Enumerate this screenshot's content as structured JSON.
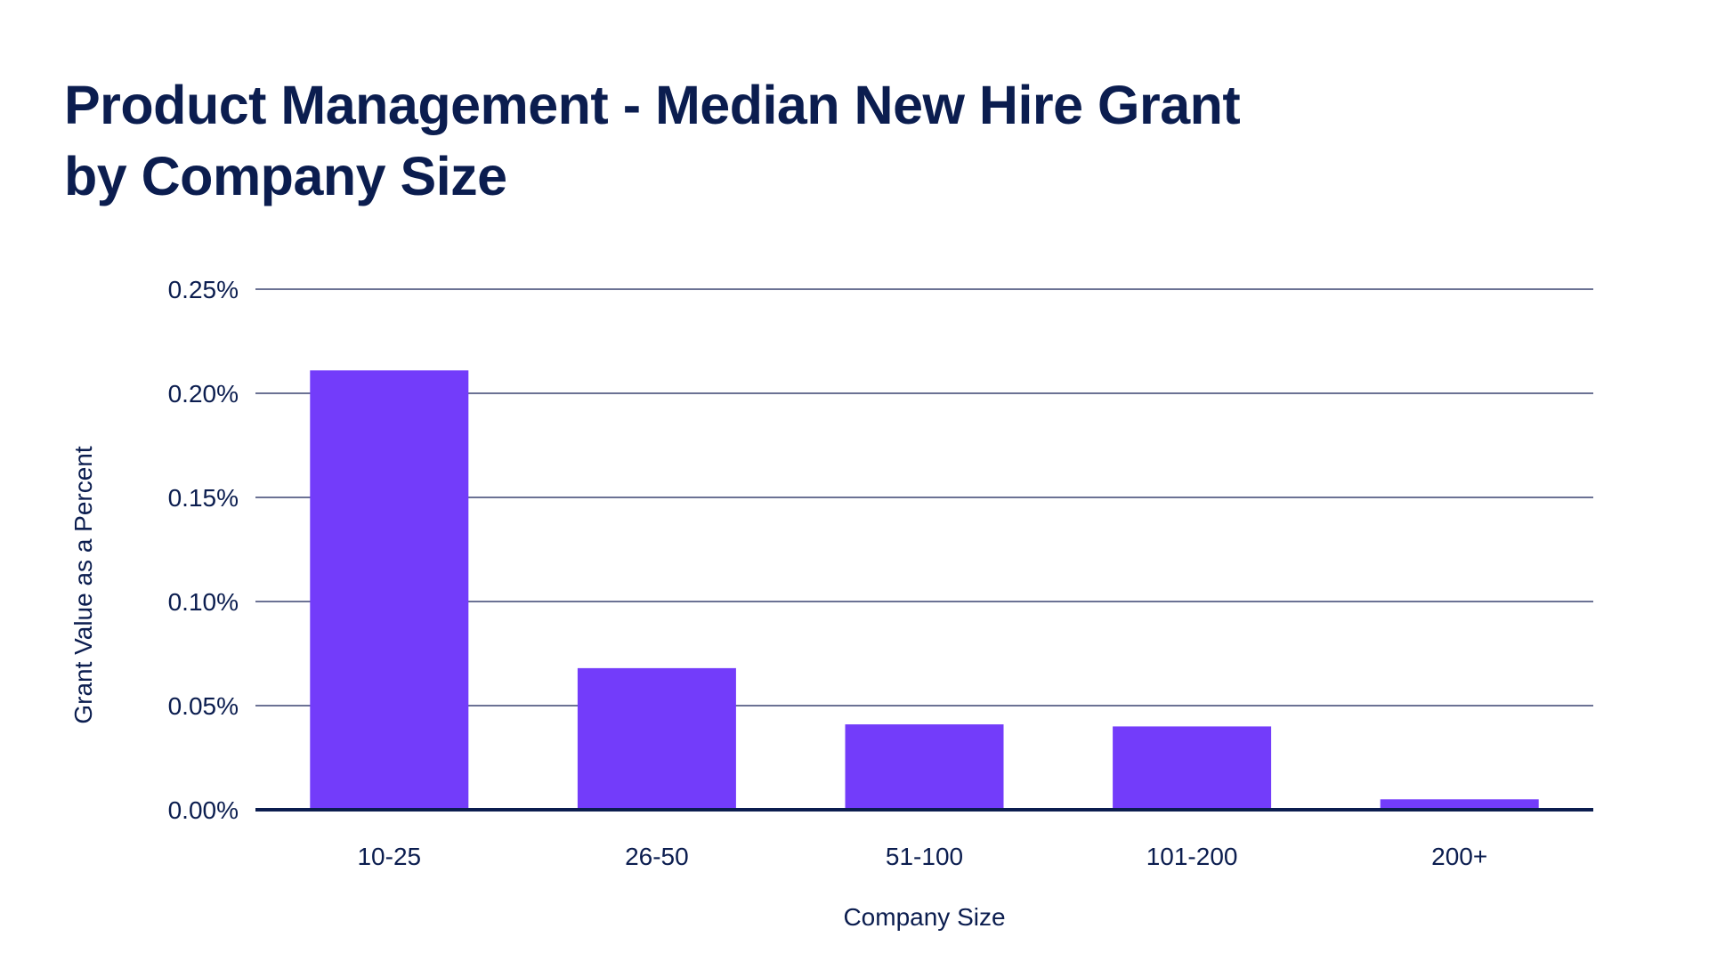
{
  "chart_data": {
    "type": "bar",
    "title_lines": [
      "Product Management - Median New Hire Grant",
      "by Company Size"
    ],
    "xlabel": "Company Size",
    "ylabel": "Grant Value as a Percent",
    "categories": [
      "10-25",
      "26-50",
      "51-100",
      "101-200",
      "200+"
    ],
    "values": [
      0.211,
      0.068,
      0.041,
      0.04,
      0.005
    ],
    "value_unit": "%",
    "ylim": [
      0,
      0.25
    ],
    "yticks": [
      0,
      0.05,
      0.1,
      0.15,
      0.2,
      0.25
    ],
    "ytick_labels": [
      "0.00%",
      "0.05%",
      "0.10%",
      "0.15%",
      "0.20%",
      "0.25%"
    ],
    "grid": true,
    "legend": "none",
    "colors": {
      "bar": "#733cfa",
      "text": "#0b1d4f",
      "grid": "#3a4470",
      "baseline": "#0b1d4f"
    }
  }
}
